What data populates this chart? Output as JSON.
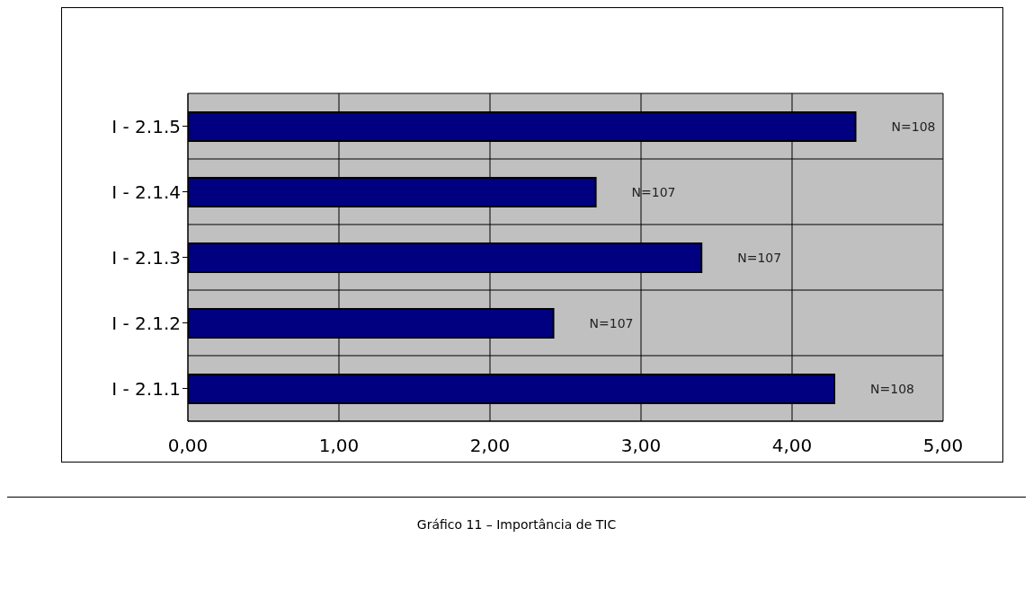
{
  "chart_data": {
    "type": "bar",
    "orientation": "horizontal",
    "title": "Gráfico 11 – Importância de TIC",
    "categories": [
      "I - 2.1.5",
      "I - 2.1.4",
      "I - 2.1.3",
      "I - 2.1.2",
      "I - 2.1.1"
    ],
    "values": [
      4.42,
      2.7,
      3.4,
      2.42,
      4.28
    ],
    "color": "#000080",
    "annotations": [
      "N=108",
      "N=107",
      "N=107",
      "N=107",
      "N=108"
    ],
    "xlim": [
      0,
      5
    ],
    "xticks": [
      {
        "value": 0,
        "label": "0,00"
      },
      {
        "value": 1,
        "label": "1,00"
      },
      {
        "value": 2,
        "label": "2,00"
      },
      {
        "value": 3,
        "label": "3,00"
      },
      {
        "value": 4,
        "label": "4,00"
      },
      {
        "value": 5,
        "label": "5,00"
      }
    ],
    "grid": true
  }
}
